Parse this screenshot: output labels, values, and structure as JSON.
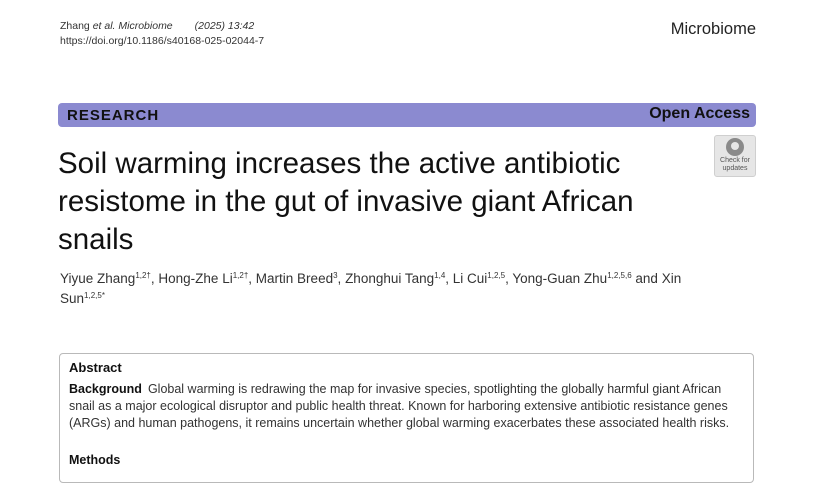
{
  "header": {
    "citation_authors": "Zhang ",
    "citation_etal": "et al.",
    "citation_journal": " Microbiome",
    "citation_year": "(2025) 13:42",
    "doi": "https://doi.org/10.1186/s40168-025-02044-7",
    "journal_name": "Microbiome"
  },
  "banner": {
    "article_type": "RESEARCH",
    "access": "Open Access",
    "color": "#8b8ad0"
  },
  "check_updates": {
    "line1": "Check for",
    "line2": "updates"
  },
  "title": "Soil warming increases the active antibiotic resistome in the gut of invasive giant African snails",
  "authors": [
    {
      "name": "Yiyue Zhang",
      "aff": "1,2†"
    },
    {
      "name": "Hong-Zhe Li",
      "aff": "1,2†"
    },
    {
      "name": "Martin Breed",
      "aff": "3"
    },
    {
      "name": "Zhonghui Tang",
      "aff": "1,4"
    },
    {
      "name": "Li Cui",
      "aff": "1,2,5"
    },
    {
      "name": "Yong-Guan Zhu",
      "aff": "1,2,5,6"
    },
    {
      "name": "Xin Sun",
      "aff": "1,2,5*"
    }
  ],
  "author_separator": ", ",
  "author_and": " and",
  "abstract": {
    "heading": "Abstract",
    "background_label": "Background",
    "background_text": "Global warming is redrawing the map for invasive species, spotlighting the globally harmful giant African snail as a major ecological disruptor and public health threat. Known for harboring extensive antibiotic resistance genes (ARGs) and human pathogens, it remains uncertain whether global warming exacerbates these associated health risks.",
    "methods_label": "Methods"
  }
}
